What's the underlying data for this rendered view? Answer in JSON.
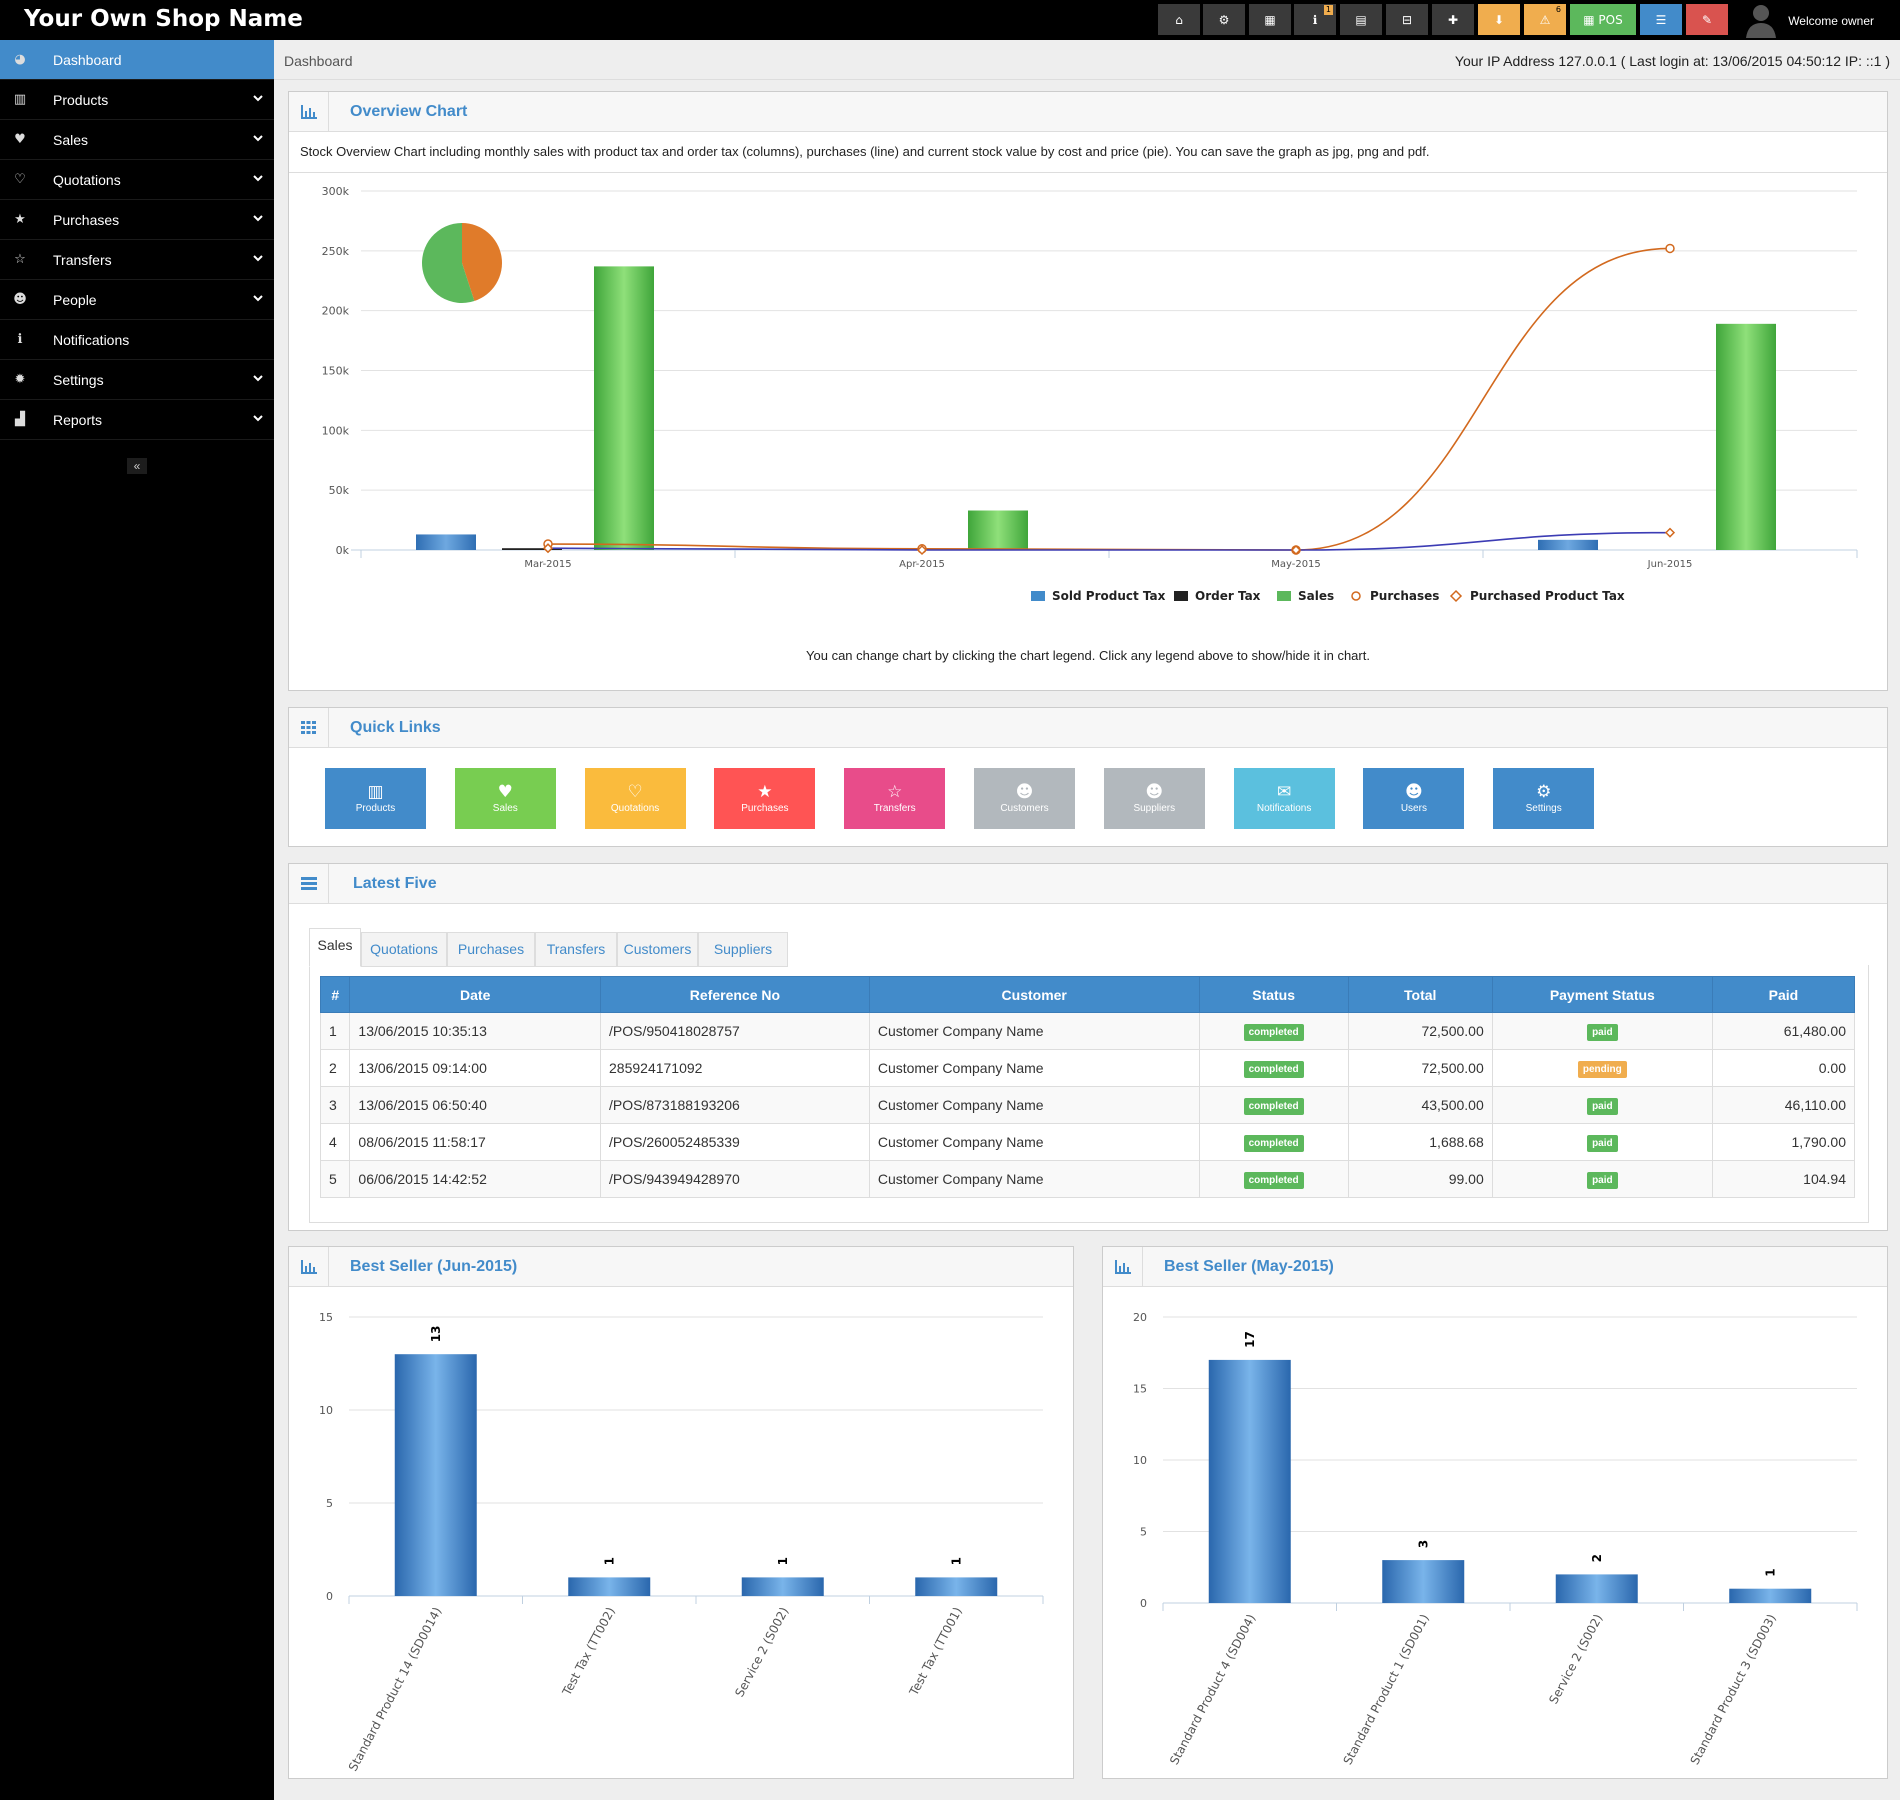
{
  "brand": "Your Own Shop Name",
  "topbar": {
    "buttons": [
      {
        "name": "dashboard-button",
        "icon": "dashboard-icon",
        "glyph": "⌂",
        "color": "#3a3a3a"
      },
      {
        "name": "settings-button",
        "icon": "cogs-icon",
        "glyph": "⚙",
        "color": "#3a3a3a"
      },
      {
        "name": "calculator-button",
        "icon": "calculator-icon",
        "glyph": "▦",
        "color": "#3a3a3a"
      },
      {
        "name": "info-button",
        "icon": "info-icon",
        "glyph": "ℹ",
        "color": "#3a3a3a",
        "badge": "1"
      },
      {
        "name": "calendar-button",
        "icon": "calendar-icon",
        "glyph": "▤",
        "color": "#3a3a3a"
      },
      {
        "name": "clear-cache-button",
        "icon": "html5-icon",
        "glyph": "⊟",
        "color": "#3a3a3a"
      },
      {
        "name": "language-button",
        "icon": "uk-flag-icon",
        "glyph": "✚",
        "color": "#3a3a3a"
      },
      {
        "name": "download-button",
        "icon": "download-icon",
        "glyph": "⬇",
        "color": "#f0ad4e"
      },
      {
        "name": "alerts-button",
        "icon": "warning-icon",
        "glyph": "⚠",
        "color": "#f0ad4e",
        "badge": "6"
      },
      {
        "name": "pos-button",
        "icon": "pos-grid-icon",
        "glyph": "▦ POS",
        "color": "#5cb85c"
      },
      {
        "name": "list-button",
        "icon": "list-icon",
        "glyph": "☰",
        "color": "#428bca"
      },
      {
        "name": "eraser-button",
        "icon": "eraser-icon",
        "glyph": "✎",
        "color": "#d9534f"
      }
    ],
    "welcome": "Welcome owner"
  },
  "sidebar": {
    "items": [
      {
        "label": "Dashboard",
        "icon": "dashboard-icon",
        "glyph": "◕",
        "active": true,
        "chevron": false
      },
      {
        "label": "Products",
        "icon": "barcode-icon",
        "glyph": "▥",
        "chevron": true
      },
      {
        "label": "Sales",
        "icon": "heart-icon",
        "glyph": "♥",
        "chevron": true
      },
      {
        "label": "Quotations",
        "icon": "heart-outline-icon",
        "glyph": "♡",
        "chevron": true
      },
      {
        "label": "Purchases",
        "icon": "star-icon",
        "glyph": "★",
        "chevron": true
      },
      {
        "label": "Transfers",
        "icon": "star-outline-icon",
        "glyph": "☆",
        "chevron": true
      },
      {
        "label": "People",
        "icon": "users-icon",
        "glyph": "☻",
        "chevron": true
      },
      {
        "label": "Notifications",
        "icon": "info-icon",
        "glyph": "ℹ",
        "chevron": false
      },
      {
        "label": "Settings",
        "icon": "cog-icon",
        "glyph": "✹",
        "chevron": true
      },
      {
        "label": "Reports",
        "icon": "bar-chart-icon",
        "glyph": "▟",
        "chevron": true
      }
    ],
    "collapse": "«"
  },
  "breadcrumb": "Dashboard",
  "ip_info": "Your IP Address 127.0.0.1 ( Last login at: 13/06/2015 04:50:12 IP: ::1 )",
  "overview": {
    "title": "Overview Chart",
    "description": "Stock Overview Chart including monthly sales with product tax and order tax (columns), purchases (line) and current stock value by cost and price (pie). You can save the graph as jpg, png and pdf.",
    "note": "You can change chart by clicking the chart legend. Click any legend above to show/hide it in chart."
  },
  "quick_links": {
    "title": "Quick Links",
    "items": [
      {
        "label": "Products",
        "icon": "barcode-icon",
        "glyph": "▥",
        "color": "#428bca"
      },
      {
        "label": "Sales",
        "icon": "heart-icon",
        "glyph": "♥",
        "color": "#78cd51"
      },
      {
        "label": "Quotations",
        "icon": "heart-outline-icon",
        "glyph": "♡",
        "color": "#fabb3d"
      },
      {
        "label": "Purchases",
        "icon": "star-icon",
        "glyph": "★",
        "color": "#ff5454"
      },
      {
        "label": "Transfers",
        "icon": "star-outline-icon",
        "glyph": "☆",
        "color": "#e84c8a"
      },
      {
        "label": "Customers",
        "icon": "users-icon",
        "glyph": "☻",
        "color": "#b2b8bd"
      },
      {
        "label": "Suppliers",
        "icon": "users-icon",
        "glyph": "☻",
        "color": "#b2b8bd"
      },
      {
        "label": "Notifications",
        "icon": "comments-icon",
        "glyph": "✉",
        "color": "#5bc0de"
      },
      {
        "label": "Users",
        "icon": "users-icon",
        "glyph": "☻",
        "color": "#428bca"
      },
      {
        "label": "Settings",
        "icon": "cogs-icon",
        "glyph": "⚙",
        "color": "#428bca"
      }
    ]
  },
  "latest": {
    "title": "Latest Five",
    "tabs": [
      "Sales",
      "Quotations",
      "Purchases",
      "Transfers",
      "Customers",
      "Suppliers"
    ],
    "columns": [
      "#",
      "Date",
      "Reference No",
      "Customer",
      "Status",
      "Total",
      "Payment Status",
      "Paid"
    ],
    "rows": [
      {
        "n": "1",
        "date": "13/06/2015 10:35:13",
        "ref": "/POS/950418028757",
        "customer": "Customer Company Name",
        "status": "completed",
        "total": "72,500.00",
        "payment": "paid",
        "paid": "61,480.00"
      },
      {
        "n": "2",
        "date": "13/06/2015 09:14:00",
        "ref": "285924171092",
        "customer": "Customer Company Name",
        "status": "completed",
        "total": "72,500.00",
        "payment": "pending",
        "paid": "0.00"
      },
      {
        "n": "3",
        "date": "13/06/2015 06:50:40",
        "ref": "/POS/873188193206",
        "customer": "Customer Company Name",
        "status": "completed",
        "total": "43,500.00",
        "payment": "paid",
        "paid": "46,110.00"
      },
      {
        "n": "4",
        "date": "08/06/2015 11:58:17",
        "ref": "/POS/260052485339",
        "customer": "Customer Company Name",
        "status": "completed",
        "total": "1,688.68",
        "payment": "paid",
        "paid": "1,790.00"
      },
      {
        "n": "5",
        "date": "06/06/2015 14:42:52",
        "ref": "/POS/943949428970",
        "customer": "Customer Company Name",
        "status": "completed",
        "total": "99.00",
        "payment": "paid",
        "paid": "104.94"
      }
    ],
    "status_colors": {
      "completed": "#5cb85c",
      "paid": "#5cb85c",
      "pending": "#f0ad4e"
    }
  },
  "best_jun": {
    "title": "Best Seller (Jun-2015)"
  },
  "best_may": {
    "title": "Best Seller (May-2015)"
  },
  "chart_data": [
    {
      "type": "bar",
      "categories": [
        "Mar-2015",
        "Apr-2015",
        "May-2015",
        "Jun-2015"
      ],
      "ylim": [
        0,
        300000
      ],
      "yticks": [
        "0k",
        "50k",
        "100k",
        "150k",
        "200k",
        "250k",
        "300k"
      ],
      "series": [
        {
          "name": "Sold Product Tax",
          "kind": "column",
          "color": "#428bca",
          "values": [
            13000,
            0,
            0,
            8500
          ]
        },
        {
          "name": "Order Tax",
          "kind": "column",
          "color": "#222222",
          "values": [
            1500,
            0,
            0,
            0
          ]
        },
        {
          "name": "Sales",
          "kind": "column",
          "color": "#5cb85c",
          "values": [
            237000,
            33000,
            0,
            189000
          ]
        },
        {
          "name": "Purchases",
          "kind": "line",
          "color": "#d2691e",
          "values": [
            5000,
            1000,
            0,
            252000
          ]
        },
        {
          "name": "Purchased Product Tax",
          "kind": "line",
          "color": "#3c3cb4",
          "values": [
            1500,
            0,
            0,
            14500
          ]
        }
      ],
      "pie": {
        "values": [
          45,
          55
        ],
        "colors": [
          "#e07b2a",
          "#5cb85c"
        ]
      }
    },
    {
      "type": "bar",
      "categories": [
        "Standard Product 14 (SD0014)",
        "Test Tax (TT002)",
        "Service 2 (S002)",
        "Test Tax (TT001)"
      ],
      "values": [
        13,
        1,
        1,
        1
      ],
      "ylim": [
        0,
        15
      ],
      "yticks": [
        "0",
        "5",
        "10",
        "15"
      ]
    },
    {
      "type": "bar",
      "categories": [
        "Standard Product 4 (SD004)",
        "Standard Product 1 (SD001)",
        "Service 2 (S002)",
        "Standard Product 3 (SD003)"
      ],
      "values": [
        17,
        3,
        2,
        1
      ],
      "ylim": [
        0,
        20
      ],
      "yticks": [
        "0",
        "5",
        "10",
        "15",
        "20"
      ]
    }
  ]
}
